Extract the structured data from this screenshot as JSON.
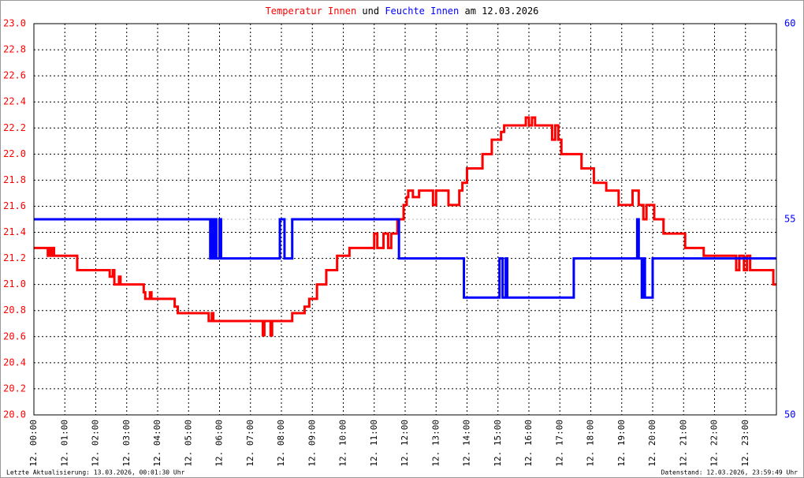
{
  "chart_data": {
    "type": "line",
    "drawstyle": "steps-post",
    "title_join": "und",
    "title_date": "am 12.03.2026",
    "footer_left": "Letzte Aktualisierung: 13.03.2026, 00:01:30 Uhr",
    "footer_right": "Datenstand: 12.03.2026, 23:59:49 Uhr",
    "grid": true,
    "xlim": [
      0,
      24
    ],
    "xticks": [
      {
        "value": 0,
        "label": "12. 00:00"
      },
      {
        "value": 1,
        "label": "12. 01:00"
      },
      {
        "value": 2,
        "label": "12. 02:00"
      },
      {
        "value": 3,
        "label": "12. 03:00"
      },
      {
        "value": 4,
        "label": "12. 04:00"
      },
      {
        "value": 5,
        "label": "12. 05:00"
      },
      {
        "value": 6,
        "label": "12. 06:00"
      },
      {
        "value": 7,
        "label": "12. 07:00"
      },
      {
        "value": 8,
        "label": "12. 08:00"
      },
      {
        "value": 9,
        "label": "12. 09:00"
      },
      {
        "value": 10,
        "label": "12. 10:00"
      },
      {
        "value": 11,
        "label": "12. 11:00"
      },
      {
        "value": 12,
        "label": "12. 12:00"
      },
      {
        "value": 13,
        "label": "12. 13:00"
      },
      {
        "value": 14,
        "label": "12. 14:00"
      },
      {
        "value": 15,
        "label": "12. 15:00"
      },
      {
        "value": 16,
        "label": "12. 16:00"
      },
      {
        "value": 17,
        "label": "12. 17:00"
      },
      {
        "value": 18,
        "label": "12. 18:00"
      },
      {
        "value": 19,
        "label": "12. 19:00"
      },
      {
        "value": 20,
        "label": "12. 20:00"
      },
      {
        "value": 21,
        "label": "12. 21:00"
      },
      {
        "value": 22,
        "label": "12. 22:00"
      },
      {
        "value": 23,
        "label": "12. 23:00"
      }
    ],
    "ylim": [
      20,
      23
    ],
    "yticks": [
      {
        "value": 20,
        "label": "20.0"
      },
      20.2,
      20.4,
      20.6,
      20.8,
      {
        "value": 21,
        "label": "21.0"
      },
      21.2,
      21.4,
      21.6,
      21.8,
      {
        "value": 22,
        "label": "22.0"
      },
      22.2,
      22.4,
      22.6,
      22.8,
      {
        "value": 23,
        "label": "23.0"
      }
    ],
    "y2lim": [
      50,
      60
    ],
    "y2ticks": [
      50,
      55,
      60
    ],
    "y2_guide": 55,
    "series": [
      {
        "name": "Temperatur Innen",
        "color": "#ff0000",
        "x": [
          0,
          0.45,
          0.5,
          0.55,
          0.6,
          0.65,
          1.4,
          2.45,
          2.55,
          2.6,
          2.75,
          2.8,
          3.55,
          3.6,
          3.75,
          3.8,
          4.55,
          4.65,
          5.65,
          5.75,
          5.8,
          7.4,
          7.45,
          7.65,
          7.7,
          8.35,
          8.75,
          8.9,
          9.15,
          9.45,
          9.8,
          10.2,
          11.0,
          11.1,
          11.3,
          11.45,
          11.55,
          11.75,
          11.95,
          12.05,
          12.1,
          12.25,
          12.45,
          12.9,
          13.0,
          13.4,
          13.75,
          13.85,
          14.0,
          14.5,
          14.8,
          15.1,
          15.2,
          15.9,
          16.0,
          16.1,
          16.2,
          16.75,
          16.85,
          16.95,
          17.05,
          17.7,
          18.1,
          18.5,
          18.9,
          19.35,
          19.55,
          19.7,
          19.8,
          20.05,
          20.35,
          21.05,
          21.65,
          22.7,
          22.8,
          22.95,
          23.05,
          23.15,
          23.9,
          24
        ],
        "values": [
          21.28,
          21.22,
          21.28,
          21.22,
          21.28,
          21.22,
          21.11,
          21.06,
          21.11,
          21.0,
          21.06,
          21.0,
          20.94,
          20.89,
          20.94,
          20.89,
          20.83,
          20.78,
          20.72,
          20.78,
          20.72,
          20.61,
          20.72,
          20.61,
          20.72,
          20.78,
          20.83,
          20.89,
          21.0,
          21.11,
          21.22,
          21.28,
          21.39,
          21.28,
          21.39,
          21.28,
          21.39,
          21.5,
          21.61,
          21.67,
          21.72,
          21.67,
          21.72,
          21.61,
          21.72,
          21.61,
          21.72,
          21.78,
          21.89,
          22.0,
          22.11,
          22.17,
          22.22,
          22.28,
          22.22,
          22.28,
          22.22,
          22.11,
          22.22,
          22.11,
          22.0,
          21.89,
          21.78,
          21.72,
          21.61,
          21.72,
          21.61,
          21.5,
          21.61,
          21.5,
          21.39,
          21.28,
          21.22,
          21.11,
          21.22,
          21.11,
          21.22,
          21.11,
          21.0,
          21.0
        ]
      },
      {
        "name": "Feuchte Innen",
        "color": "#0000ff",
        "axis": "y2",
        "x": [
          0,
          5.7,
          5.75,
          5.8,
          5.85,
          5.9,
          6.0,
          6.05,
          7.95,
          8.1,
          8.35,
          11.8,
          13.9,
          15.05,
          15.15,
          15.25,
          15.3,
          17.45,
          19.5,
          19.55,
          19.65,
          19.7,
          19.75,
          20.0,
          24
        ],
        "values": [
          55,
          54,
          55,
          54,
          55,
          54,
          55,
          54,
          55,
          54,
          55,
          54,
          53,
          54,
          53,
          54,
          53,
          54,
          55,
          54,
          53,
          54,
          53,
          54,
          54
        ]
      }
    ]
  }
}
